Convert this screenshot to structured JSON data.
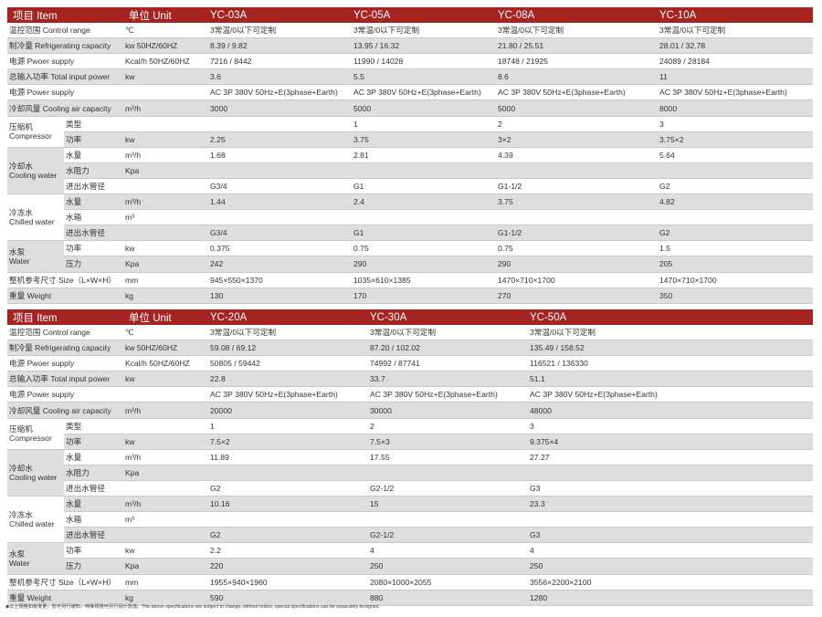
{
  "header_color": "#a52320",
  "stripe_color": "#dedede",
  "groups": {
    "compressor": "压缩机\nCompressor",
    "cooling": "冷却水\nCooling water",
    "chilled": "冷冻水\nChilled water",
    "pump": "水泵\nWater"
  },
  "tables": [
    {
      "header": {
        "item": "项目 Item",
        "unit": "单位 Unit",
        "models": [
          "YC-03A",
          "YC-05A",
          "YC-08A",
          "YC-10A"
        ]
      },
      "rows": [
        {
          "label": "温控范围 Control range",
          "unit": "℃",
          "values": [
            "3常温/0以下可定制",
            "3常温/0以下可定制",
            "3常温/0以下可定制",
            "3常温/0以下可定制"
          ]
        },
        {
          "label": "制冷量 Refrigerating capacity",
          "unit": "kw  50HZ/60HZ",
          "values": [
            "8.39 / 9.82",
            "13.95 / 16.32",
            "21.80 / 25.51",
            "28.01 / 32.78"
          ]
        },
        {
          "label": "电源 Pwoer supply",
          "unit": "Kcal/h  50HZ/60HZ",
          "values": [
            "7216 / 8442",
            "11990 / 14028",
            "18748 / 21925",
            "24089 / 28184"
          ]
        },
        {
          "label": "总输入功率 Total input power",
          "unit": "kw",
          "values": [
            "3.6",
            "5.5",
            "8.6",
            "11"
          ]
        },
        {
          "label": "电源 Power supply",
          "unit": "",
          "values": [
            "AC 3P 380V 50Hz+E(3phase+Earth)",
            "AC 3P 380V 50Hz+E(3phase+Earth)",
            "AC 3P 380V 50Hz+E(3phase+Earth)",
            "AC 3P 380V 50Hz+E(3phase+Earth)"
          ]
        },
        {
          "label": "冷却风量 Cooling air capacity",
          "unit": "m³/h",
          "values": [
            "3000",
            "5000",
            "5000",
            "8000"
          ]
        },
        {
          "group": "compressor",
          "sub": "类型",
          "unit": "",
          "values": [
            "",
            "1",
            "2",
            "3"
          ]
        },
        {
          "group": "compressor",
          "sub": "功率",
          "unit": "kw",
          "values": [
            "2.25",
            "3.75",
            "3×2",
            "3.75×2"
          ]
        },
        {
          "group": "cooling",
          "sub": "水量",
          "unit": "m³/h",
          "values": [
            "1.68",
            "2.81",
            "4.39",
            "5.64"
          ]
        },
        {
          "group": "cooling",
          "sub": "水阻力",
          "unit": "Kpa",
          "values": [
            "",
            "",
            "",
            ""
          ]
        },
        {
          "group": "cooling",
          "sub": "进出水管径",
          "unit": "",
          "values": [
            "G3/4",
            "G1",
            "G1-1/2",
            "G2"
          ]
        },
        {
          "group": "chilled",
          "sub": "水量",
          "unit": "m³/h",
          "values": [
            "1.44",
            "2.4",
            "3.75",
            "4.82"
          ]
        },
        {
          "group": "chilled",
          "sub": "水箱",
          "unit": "m³",
          "values": [
            "",
            "",
            "",
            ""
          ]
        },
        {
          "group": "chilled",
          "sub": "进出水管径",
          "unit": "",
          "values": [
            "G3/4",
            "G1",
            "G1-1/2",
            "G2"
          ]
        },
        {
          "group": "pump",
          "sub": "功率",
          "unit": "kw",
          "values": [
            "0.375",
            "0.75",
            "0.75",
            "1.5"
          ]
        },
        {
          "group": "pump",
          "sub": "压力",
          "unit": "Kpa",
          "values": [
            "242",
            "290",
            "290",
            "205"
          ]
        },
        {
          "label": "整机参考尺寸 Size（L×W×H）",
          "unit": "mm",
          "values": [
            "945×550×1370",
            "1035×610×1385",
            "1470×710×1700",
            "1470×710×1700"
          ]
        },
        {
          "label": "重量 Weight",
          "unit": "kg",
          "values": [
            "130",
            "170",
            "270",
            "350"
          ]
        }
      ]
    },
    {
      "header": {
        "item": "项目 Item",
        "unit": "单位 Unit",
        "models": [
          "YC-20A",
          "YC-30A",
          "YC-50A"
        ]
      },
      "rows": [
        {
          "label": "温控范围 Control range",
          "unit": "℃",
          "values": [
            "3常温/0以下可定制",
            "3常温/0以下可定制",
            "3常温/0以下可定制"
          ]
        },
        {
          "label": "制冷量 Refrigerating capacity",
          "unit": "kw  50HZ/60HZ",
          "values": [
            "59.08 / 69.12",
            "87.20 / 102.02",
            "135.49 / 158.52"
          ]
        },
        {
          "label": "电源 Pwoer supply",
          "unit": "Kcal/h  50HZ/60HZ",
          "values": [
            "50805 / 59442",
            "74992 / 87741",
            "116521 / 136330"
          ]
        },
        {
          "label": "总输入功率 Total input power",
          "unit": "kw",
          "values": [
            "22.8",
            "33.7",
            "51.1"
          ]
        },
        {
          "label": "电源 Power supply",
          "unit": "",
          "values": [
            "AC 3P 380V 50Hz+E(3phase+Earth)",
            "AC 3P 380V 50Hz+E(3phase+Earth)",
            "AC 3P 380V 50Hz+E(3phase+Earth)"
          ]
        },
        {
          "label": "冷却风量 Cooling air capacity",
          "unit": "m³/h",
          "values": [
            "20000",
            "30000",
            "48000"
          ]
        },
        {
          "group": "compressor",
          "sub": "类型",
          "unit": "",
          "values": [
            "1",
            "2",
            "3"
          ]
        },
        {
          "group": "compressor",
          "sub": "功率",
          "unit": "kw",
          "values": [
            "7.5×2",
            "7.5×3",
            "9.375×4"
          ]
        },
        {
          "group": "cooling",
          "sub": "水量",
          "unit": "m³/h",
          "values": [
            "11.89",
            "17.55",
            "27.27"
          ]
        },
        {
          "group": "cooling",
          "sub": "水阻力",
          "unit": "Kpa",
          "values": [
            "",
            "",
            ""
          ]
        },
        {
          "group": "cooling",
          "sub": "进出水管径",
          "unit": "",
          "values": [
            "G2",
            "G2-1/2",
            "G3"
          ]
        },
        {
          "group": "chilled",
          "sub": "水量",
          "unit": "m³/h",
          "values": [
            "10.16",
            "15",
            "23.3"
          ]
        },
        {
          "group": "chilled",
          "sub": "水箱",
          "unit": "m³",
          "values": [
            "",
            "",
            ""
          ]
        },
        {
          "group": "chilled",
          "sub": "进出水管径",
          "unit": "",
          "values": [
            "G2",
            "G2-1/2",
            "G3"
          ]
        },
        {
          "group": "pump",
          "sub": "功率",
          "unit": "kw",
          "values": [
            "2.2",
            "4",
            "4"
          ]
        },
        {
          "group": "pump",
          "sub": "压力",
          "unit": "Kpa",
          "values": [
            "220",
            "250",
            "250"
          ]
        },
        {
          "label": "整机参考尺寸 Size（L×W×H）",
          "unit": "mm",
          "values": [
            "1955×940×1960",
            "2080×1000×2055",
            "3556×2200×2100"
          ]
        },
        {
          "label": "重量 Weight",
          "unit": "kg",
          "values": [
            "590",
            "880",
            "1280"
          ]
        }
      ]
    }
  ],
  "footnote": "◆以上规格如有变更，恕不另行通知，特殊规格可另行设计改造。The above specifications are subject to change, without notice, special specifications can be separately designed."
}
